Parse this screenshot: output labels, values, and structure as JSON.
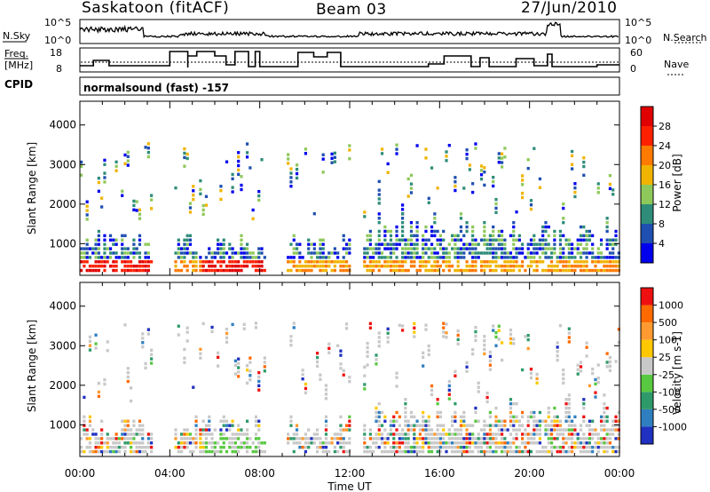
{
  "header": {
    "station": "Saskatoon (fitACF)",
    "beam": "Beam 03",
    "date": "27/Jun/2010"
  },
  "top_panel": {
    "nsky_label": "N.Sky",
    "nsearch_label": "N.Search",
    "tick_top": "10^5",
    "tick_bottom": "10^0",
    "freq_label_1": "Freq.",
    "freq_label_2": "[MHz]",
    "freq_ticks": [
      "18",
      "8"
    ],
    "nave_label": "Nave",
    "nave_ticks": [
      "60",
      "0"
    ],
    "cpid_label": "CPID",
    "cpid_value": "normalsound (fast) -157"
  },
  "chart_data": [
    {
      "type": "heatmap",
      "name": "power-panel",
      "xlabel": "",
      "ylabel": "Slant Range [km]",
      "x_ticks": [],
      "y_ticks": [
        "1000",
        "2000",
        "3000",
        "4000"
      ],
      "ylim": [
        200,
        4600
      ],
      "colorbar": {
        "label": "Power [dB]",
        "ticks": [
          "4",
          "8",
          "12",
          "16",
          "20",
          "24",
          "28"
        ],
        "colors": [
          "#0000ee",
          "#1f4fb0",
          "#2e8c78",
          "#8ec85a",
          "#f0b400",
          "#ff7a00",
          "#ff2000",
          "#e00000"
        ]
      }
    },
    {
      "type": "heatmap",
      "name": "velocity-panel",
      "xlabel": "Time UT",
      "ylabel": "Slant Range [km]",
      "x_ticks": [
        "00:00",
        "04:00",
        "08:00",
        "12:00",
        "16:00",
        "20:00",
        "00:00"
      ],
      "y_ticks": [
        "1000",
        "2000",
        "3000",
        "4000"
      ],
      "ylim": [
        200,
        4600
      ],
      "colorbar": {
        "label": "Velocity [m s-1]",
        "ticks": [
          "1000",
          "500",
          "100",
          "25",
          "-25",
          "-100",
          "-500",
          "-1000"
        ],
        "colors": [
          "#2030c0",
          "#2f7fc0",
          "#2e9a6a",
          "#58c840",
          "#c8c8c8",
          "#ffc800",
          "#ff9a30",
          "#ff6a00",
          "#ee1010"
        ]
      }
    }
  ]
}
